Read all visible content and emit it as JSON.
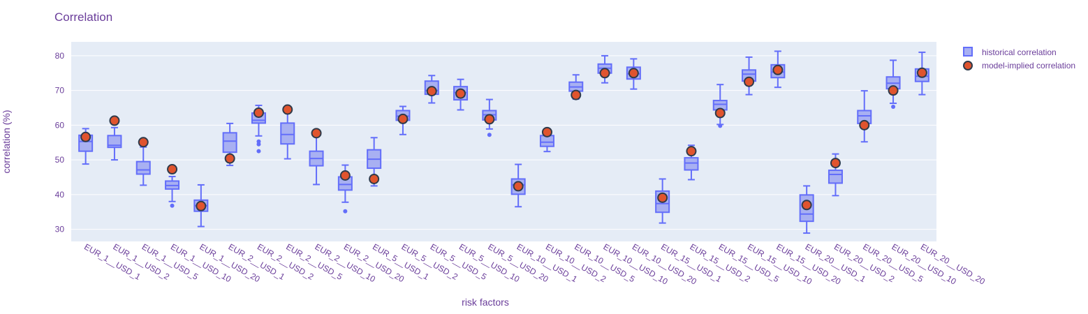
{
  "chart_data": {
    "type": "box",
    "title": "Correlation",
    "xlabel": "risk factors",
    "ylabel": "correlation (%)",
    "ylim": [
      26.5,
      84
    ],
    "yticks": [
      30,
      40,
      50,
      60,
      70,
      80
    ],
    "grid": true,
    "legend_position": "top-right",
    "colors": {
      "box_fill": "#a8b0f2",
      "box_line": "#636efa",
      "marker_fill": "#e0542e",
      "marker_line": "#2f3a4a",
      "plot_bg": "#e5ecf6",
      "text": "#6a3d9a"
    },
    "legend": [
      {
        "name": "historical correlation",
        "kind": "box"
      },
      {
        "name": "model-implied correlation",
        "kind": "marker"
      }
    ],
    "categories": [
      "EUR_1__USD_1",
      "EUR_1__USD_2",
      "EUR_1__USD_5",
      "EUR_1__USD_10",
      "EUR_1__USD_20",
      "EUR_2__USD_1",
      "EUR_2__USD_2",
      "EUR_2__USD_5",
      "EUR_2__USD_10",
      "EUR_2__USD_20",
      "EUR_5__USD_1",
      "EUR_5__USD_2",
      "EUR_5__USD_5",
      "EUR_5__USD_10",
      "EUR_5__USD_20",
      "EUR_10__USD_1",
      "EUR_10__USD_2",
      "EUR_10__USD_5",
      "EUR_10__USD_10",
      "EUR_10__USD_20",
      "EUR_15__USD_1",
      "EUR_15__USD_2",
      "EUR_15__USD_5",
      "EUR_15__USD_10",
      "EUR_15__USD_20",
      "EUR_20__USD_1",
      "EUR_20__USD_2",
      "EUR_20__USD_5",
      "EUR_20__USD_10",
      "EUR_20__USD_20"
    ],
    "boxes": [
      {
        "min": 48.8,
        "q1": 52.5,
        "median": 55.3,
        "q3": 57.1,
        "max": 59.0,
        "outliers": []
      },
      {
        "min": 50.0,
        "q1": 53.6,
        "median": 54.2,
        "q3": 57.0,
        "max": 59.3,
        "outliers": []
      },
      {
        "min": 42.7,
        "q1": 45.9,
        "median": 47.1,
        "q3": 49.5,
        "max": 53.7,
        "outliers": []
      },
      {
        "min": 38.0,
        "q1": 41.6,
        "median": 42.6,
        "q3": 43.9,
        "max": 45.2,
        "outliers": [
          36.8
        ]
      },
      {
        "min": 30.8,
        "q1": 35.2,
        "median": 36.8,
        "q3": 38.4,
        "max": 42.8,
        "outliers": []
      },
      {
        "min": 48.4,
        "q1": 52.2,
        "median": 55.4,
        "q3": 57.8,
        "max": 60.5,
        "outliers": []
      },
      {
        "min": 56.9,
        "q1": 60.6,
        "median": 61.4,
        "q3": 63.5,
        "max": 65.7,
        "outliers": [
          52.5,
          54.5,
          55.3
        ]
      },
      {
        "min": 50.3,
        "q1": 54.6,
        "median": 57.3,
        "q3": 60.6,
        "max": 64.3,
        "outliers": []
      },
      {
        "min": 42.9,
        "q1": 48.3,
        "median": 50.4,
        "q3": 52.5,
        "max": 56.9,
        "outliers": []
      },
      {
        "min": 37.8,
        "q1": 41.3,
        "median": 42.9,
        "q3": 45.1,
        "max": 48.5,
        "outliers": [
          35.2
        ]
      },
      {
        "min": 42.5,
        "q1": 47.6,
        "median": 50.2,
        "q3": 52.9,
        "max": 56.4,
        "outliers": []
      },
      {
        "min": 57.3,
        "q1": 61.4,
        "median": 62.6,
        "q3": 64.2,
        "max": 65.4,
        "outliers": []
      },
      {
        "min": 66.4,
        "q1": 68.9,
        "median": 70.0,
        "q3": 72.7,
        "max": 74.3,
        "outliers": []
      },
      {
        "min": 64.4,
        "q1": 67.3,
        "median": 69.4,
        "q3": 71.1,
        "max": 73.2,
        "outliers": []
      },
      {
        "min": 58.9,
        "q1": 61.5,
        "median": 63.0,
        "q3": 64.2,
        "max": 67.4,
        "outliers": [
          57.2
        ]
      },
      {
        "min": 36.5,
        "q1": 40.1,
        "median": 42.8,
        "q3": 44.5,
        "max": 48.7,
        "outliers": []
      },
      {
        "min": 52.4,
        "q1": 53.9,
        "median": 55.1,
        "q3": 57.0,
        "max": 58.4,
        "outliers": []
      },
      {
        "min": 67.5,
        "q1": 69.8,
        "median": 71.0,
        "q3": 72.4,
        "max": 74.5,
        "outliers": []
      },
      {
        "min": 72.2,
        "q1": 75.0,
        "median": 76.4,
        "q3": 77.6,
        "max": 80.0,
        "outliers": []
      },
      {
        "min": 70.4,
        "q1": 73.3,
        "median": 74.8,
        "q3": 76.7,
        "max": 79.1,
        "outliers": []
      },
      {
        "min": 31.8,
        "q1": 34.9,
        "median": 37.4,
        "q3": 41.0,
        "max": 44.5,
        "outliers": []
      },
      {
        "min": 44.3,
        "q1": 47.1,
        "median": 49.1,
        "q3": 50.6,
        "max": 54.2,
        "outliers": []
      },
      {
        "min": 60.2,
        "q1": 64.4,
        "median": 66.0,
        "q3": 67.1,
        "max": 71.7,
        "outliers": [
          59.8
        ]
      },
      {
        "min": 68.8,
        "q1": 72.7,
        "median": 74.7,
        "q3": 75.9,
        "max": 79.6,
        "outliers": []
      },
      {
        "min": 70.9,
        "q1": 73.7,
        "median": 75.3,
        "q3": 77.4,
        "max": 81.3,
        "outliers": []
      },
      {
        "min": 28.9,
        "q1": 32.3,
        "median": 34.4,
        "q3": 39.9,
        "max": 42.5,
        "outliers": []
      },
      {
        "min": 39.7,
        "q1": 43.3,
        "median": 45.8,
        "q3": 47.0,
        "max": 51.7,
        "outliers": []
      },
      {
        "min": 55.2,
        "q1": 60.5,
        "median": 62.7,
        "q3": 64.2,
        "max": 69.9,
        "outliers": []
      },
      {
        "min": 66.3,
        "q1": 70.5,
        "median": 72.1,
        "q3": 73.9,
        "max": 78.7,
        "outliers": [
          65.3
        ]
      },
      {
        "min": 68.8,
        "q1": 72.6,
        "median": 74.1,
        "q3": 76.2,
        "max": 81.0,
        "outliers": []
      }
    ],
    "model_implied": [
      56.6,
      61.3,
      55.1,
      47.3,
      36.7,
      50.4,
      63.6,
      64.5,
      57.7,
      45.5,
      44.5,
      61.8,
      69.8,
      69.1,
      61.7,
      42.4,
      58.0,
      68.7,
      75.0,
      75.0,
      39.1,
      52.5,
      63.5,
      72.5,
      75.9,
      37.0,
      49.1,
      60.0,
      70.0,
      75.1
    ]
  }
}
